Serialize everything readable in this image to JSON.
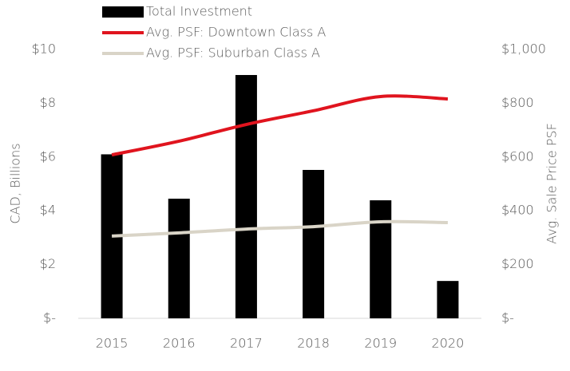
{
  "chart_data": {
    "type": "bar",
    "categories": [
      "2015",
      "2016",
      "2017",
      "2018",
      "2019",
      "2020"
    ],
    "ylabel": "CAD, Billions",
    "y2label": "Avg. Sale Price PSF",
    "ylim": [
      0,
      10
    ],
    "yticks": [
      {
        "value": 0,
        "label": "$-"
      },
      {
        "value": 2,
        "label": "$2"
      },
      {
        "value": 4,
        "label": "$4"
      },
      {
        "value": 6,
        "label": "$6"
      },
      {
        "value": 8,
        "label": "$8"
      },
      {
        "value": 10,
        "label": "$10"
      }
    ],
    "y2lim": [
      0,
      1000
    ],
    "y2ticks": [
      {
        "value": 0,
        "label": "$-"
      },
      {
        "value": 200,
        "label": "$200"
      },
      {
        "value": 400,
        "label": "$400"
      },
      {
        "value": 600,
        "label": "$600"
      },
      {
        "value": 800,
        "label": "$800"
      },
      {
        "value": 1000,
        "label": "$1,000"
      }
    ],
    "series": [
      {
        "name": "Total Investment",
        "type": "bar",
        "color": "#000000",
        "values": [
          6.1,
          4.45,
          9.05,
          5.52,
          4.39,
          1.39
        ]
      },
      {
        "name": "Avg. PSF: Downtown Class A",
        "type": "line",
        "axis": "y2",
        "color": "#e0141e",
        "values": [
          608,
          659,
          721,
          772,
          825,
          816
        ]
      },
      {
        "name": "Avg. PSF: Suburban Class A",
        "type": "line",
        "axis": "y2",
        "color": "#d9d4c7",
        "values": [
          306,
          318,
          332,
          341,
          359,
          356
        ]
      }
    ]
  }
}
